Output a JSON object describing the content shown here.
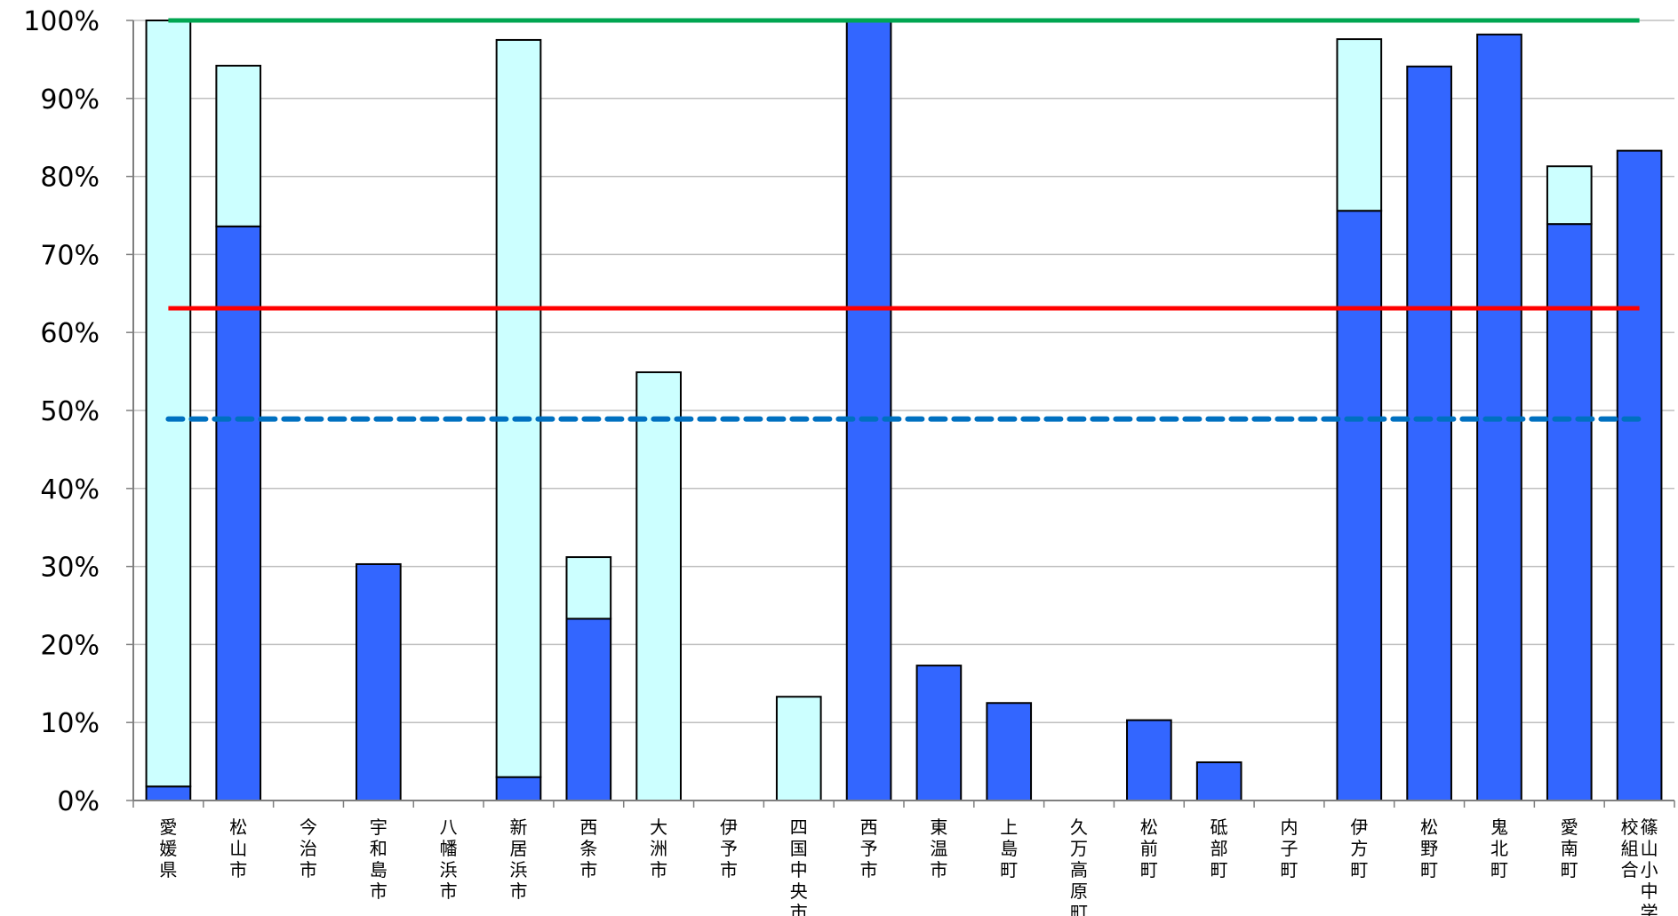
{
  "chart_data": {
    "type": "bar",
    "stacked": true,
    "ylim": [
      0,
      100
    ],
    "y_ticks": [
      "0%",
      "10%",
      "20%",
      "30%",
      "40%",
      "50%",
      "60%",
      "70%",
      "80%",
      "90%",
      "100%"
    ],
    "grid": true,
    "categories": [
      [
        "愛媛県"
      ],
      [
        "松山市"
      ],
      [
        "今治市"
      ],
      [
        "宇和島市"
      ],
      [
        "八幡浜市"
      ],
      [
        "新居浜市"
      ],
      [
        "西条市"
      ],
      [
        "大洲市"
      ],
      [
        "伊予市"
      ],
      [
        "四国中央市"
      ],
      [
        "西予市"
      ],
      [
        "東温市"
      ],
      [
        "上島町"
      ],
      [
        "久万高原町"
      ],
      [
        "松前町"
      ],
      [
        "砥部町"
      ],
      [
        "内子町"
      ],
      [
        "伊方町"
      ],
      [
        "松野町"
      ],
      [
        "鬼北町"
      ],
      [
        "愛南町"
      ],
      [
        "篠山小中学",
        "校組合"
      ]
    ],
    "series": [
      {
        "color": "#3366ff",
        "values": [
          1.8,
          73.6,
          0,
          30.3,
          0,
          3.0,
          23.3,
          0,
          0,
          0,
          100,
          17.3,
          12.5,
          0,
          10.3,
          4.9,
          0,
          75.6,
          94.1,
          98.2,
          73.9,
          83.3
        ]
      },
      {
        "color": "#ccffff",
        "values": [
          98.2,
          20.6,
          0,
          0,
          0,
          94.5,
          7.9,
          54.9,
          0,
          13.3,
          0,
          0,
          0,
          0,
          0,
          0,
          0,
          22.0,
          0,
          0,
          7.4,
          0
        ]
      }
    ],
    "reference_lines": [
      {
        "value": 100,
        "color": "#00a651",
        "style": "solid"
      },
      {
        "value": 63.1,
        "color": "#ff0000",
        "style": "solid"
      },
      {
        "value": 48.9,
        "color": "#0070c0",
        "style": "dashed"
      }
    ]
  }
}
